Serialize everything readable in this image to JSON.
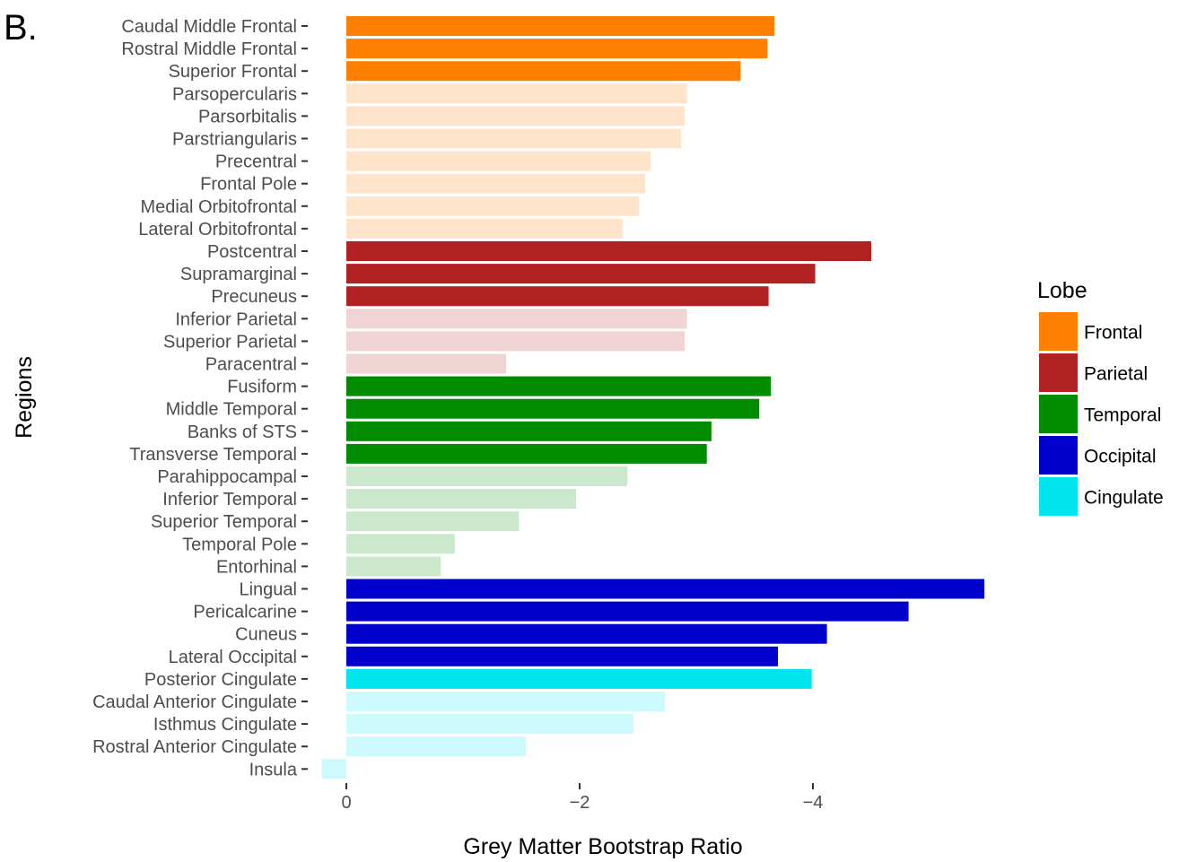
{
  "panel_label": "B.",
  "chart_data": {
    "type": "bar",
    "orientation": "horizontal",
    "title": "",
    "xlabel": "Grey Matter Bootstrap Ratio",
    "ylabel": "Regions",
    "xlim": [
      0.2,
      -5.55
    ],
    "x_reversed": true,
    "x_ticks": [
      {
        "value": 0,
        "label": "0"
      },
      {
        "value": -2,
        "label": "−2"
      },
      {
        "value": -4,
        "label": "−4"
      }
    ],
    "grid": false,
    "legend": {
      "title": "Lobe",
      "position": "right"
    },
    "lobes": [
      {
        "name": "Frontal",
        "color": "#FF7F00",
        "light_color": "#FFE4CC"
      },
      {
        "name": "Parietal",
        "color": "#B22222",
        "light_color": "#F0D3D3"
      },
      {
        "name": "Temporal",
        "color": "#008B00",
        "light_color": "#CCE8CC"
      },
      {
        "name": "Occipital",
        "color": "#0000CD",
        "light_color": "#CCCCF5"
      },
      {
        "name": "Cingulate",
        "color": "#00E5EE",
        "light_color": "#CCF9FB"
      }
    ],
    "bars": [
      {
        "region": "Caudal Middle Frontal",
        "value": -3.67,
        "lobe": "Frontal",
        "significant": true
      },
      {
        "region": "Rostral Middle Frontal",
        "value": -3.61,
        "lobe": "Frontal",
        "significant": true
      },
      {
        "region": "Superior Frontal",
        "value": -3.38,
        "lobe": "Frontal",
        "significant": true
      },
      {
        "region": "Parsopercularis",
        "value": -2.92,
        "lobe": "Frontal",
        "significant": false
      },
      {
        "region": "Parsorbitalis",
        "value": -2.9,
        "lobe": "Frontal",
        "significant": false
      },
      {
        "region": "Parstriangularis",
        "value": -2.87,
        "lobe": "Frontal",
        "significant": false
      },
      {
        "region": "Precentral",
        "value": -2.61,
        "lobe": "Frontal",
        "significant": false
      },
      {
        "region": "Frontal Pole",
        "value": -2.56,
        "lobe": "Frontal",
        "significant": false
      },
      {
        "region": "Medial Orbitofrontal",
        "value": -2.51,
        "lobe": "Frontal",
        "significant": false
      },
      {
        "region": "Lateral Orbitofrontal",
        "value": -2.37,
        "lobe": "Frontal",
        "significant": false
      },
      {
        "region": "Postcentral",
        "value": -4.5,
        "lobe": "Parietal",
        "significant": true
      },
      {
        "region": "Supramarginal",
        "value": -4.02,
        "lobe": "Parietal",
        "significant": true
      },
      {
        "region": "Precuneus",
        "value": -3.62,
        "lobe": "Parietal",
        "significant": true
      },
      {
        "region": "Inferior Parietal",
        "value": -2.92,
        "lobe": "Parietal",
        "significant": false
      },
      {
        "region": "Superior Parietal",
        "value": -2.9,
        "lobe": "Parietal",
        "significant": false
      },
      {
        "region": "Paracentral",
        "value": -1.37,
        "lobe": "Parietal",
        "significant": false
      },
      {
        "region": "Fusiform",
        "value": -3.64,
        "lobe": "Temporal",
        "significant": true
      },
      {
        "region": "Middle Temporal",
        "value": -3.54,
        "lobe": "Temporal",
        "significant": true
      },
      {
        "region": "Banks of STS",
        "value": -3.13,
        "lobe": "Temporal",
        "significant": true
      },
      {
        "region": "Transverse Temporal",
        "value": -3.09,
        "lobe": "Temporal",
        "significant": true
      },
      {
        "region": "Parahippocampal",
        "value": -2.41,
        "lobe": "Temporal",
        "significant": false
      },
      {
        "region": "Inferior Temporal",
        "value": -1.97,
        "lobe": "Temporal",
        "significant": false
      },
      {
        "region": "Superior Temporal",
        "value": -1.48,
        "lobe": "Temporal",
        "significant": false
      },
      {
        "region": "Temporal Pole",
        "value": -0.93,
        "lobe": "Temporal",
        "significant": false
      },
      {
        "region": "Entorhinal",
        "value": -0.81,
        "lobe": "Temporal",
        "significant": false
      },
      {
        "region": "Lingual",
        "value": -5.47,
        "lobe": "Occipital",
        "significant": true
      },
      {
        "region": "Pericalcarine",
        "value": -4.82,
        "lobe": "Occipital",
        "significant": true
      },
      {
        "region": "Cuneus",
        "value": -4.12,
        "lobe": "Occipital",
        "significant": true
      },
      {
        "region": "Lateral Occipital",
        "value": -3.7,
        "lobe": "Occipital",
        "significant": true
      },
      {
        "region": "Posterior Cingulate",
        "value": -3.99,
        "lobe": "Cingulate",
        "significant": true
      },
      {
        "region": "Caudal Anterior Cingulate",
        "value": -2.73,
        "lobe": "Cingulate",
        "significant": false
      },
      {
        "region": "Isthmus Cingulate",
        "value": -2.46,
        "lobe": "Cingulate",
        "significant": false
      },
      {
        "region": "Rostral Anterior Cingulate",
        "value": -1.54,
        "lobe": "Cingulate",
        "significant": false
      },
      {
        "region": "Insula",
        "value": 0.21,
        "lobe": "Cingulate",
        "significant": false
      }
    ]
  }
}
